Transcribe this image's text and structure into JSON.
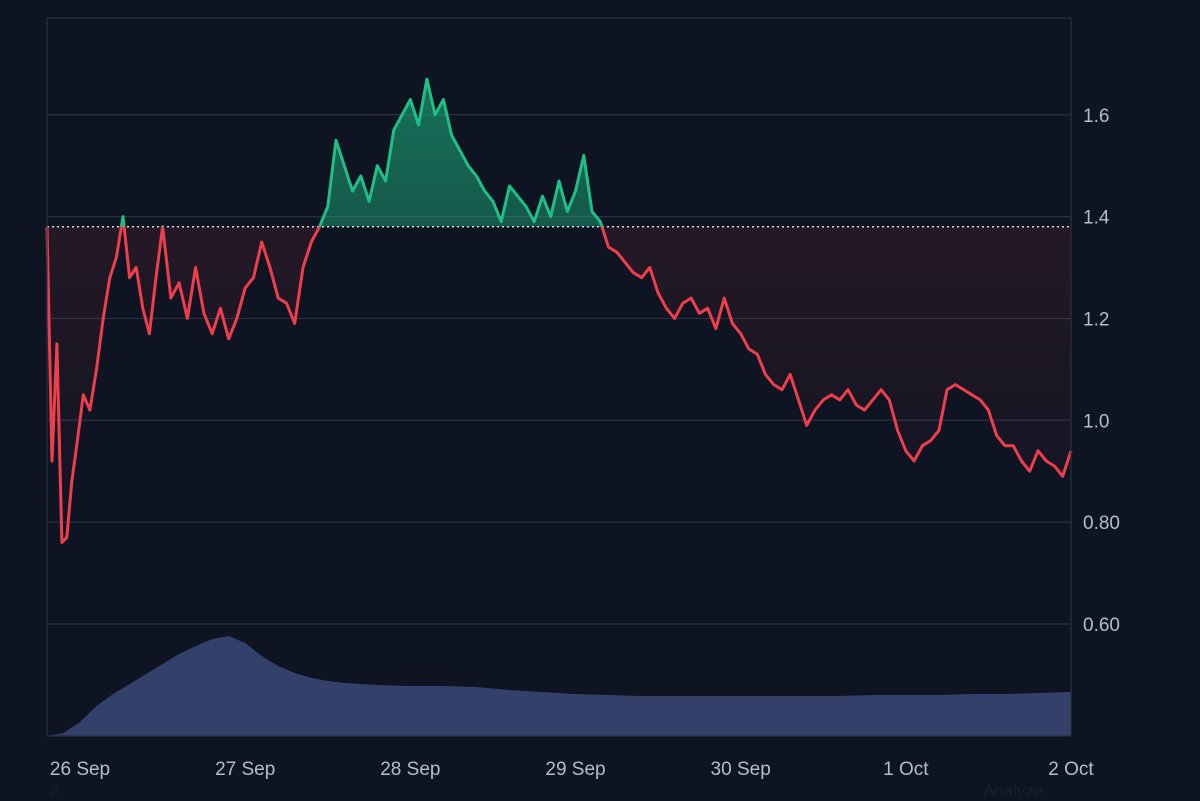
{
  "colors": {
    "background": "#0e1422",
    "grid": "#2a3142",
    "axis_text": "#b6bccb",
    "above_baseline": "#1fbf86",
    "below_baseline": "#ee3e4c",
    "baseline": "#d8dbe2",
    "volume": "#33406a"
  },
  "chart_data": {
    "type": "area",
    "title": "",
    "xlabel": "",
    "ylabel": "",
    "x_tick_labels": [
      "26 Sep",
      "27 Sep",
      "28 Sep",
      "29 Sep",
      "30 Sep",
      "1 Oct",
      "2 Oct"
    ],
    "y_tick_labels": [
      "0.60",
      "0.80",
      "1.0",
      "1.2",
      "1.4",
      "1.6"
    ],
    "y_ticks": [
      0.6,
      0.8,
      1.0,
      1.2,
      1.4,
      1.6
    ],
    "y_axis_side": "right",
    "ylim": [
      0.38,
      1.79
    ],
    "xlim": [
      25.8,
      32.0
    ],
    "x_unit": "day of month (Sep 26 = 26; Oct 1 = 31)",
    "baseline": 1.38,
    "grid": true,
    "series": [
      {
        "values_x": [
          25.8,
          25.83,
          25.86,
          25.89,
          25.92,
          25.95,
          25.98,
          26.02,
          26.06,
          26.1,
          26.14,
          26.18,
          26.22,
          26.26,
          26.3,
          26.34,
          26.38,
          26.42,
          26.46,
          26.5,
          26.55,
          26.6,
          26.65,
          26.7,
          26.75,
          26.8,
          26.85,
          26.9,
          26.95,
          27.0,
          27.05,
          27.1,
          27.15,
          27.2,
          27.25,
          27.3,
          27.35,
          27.4,
          27.45,
          27.5,
          27.55,
          27.6,
          27.65,
          27.7,
          27.75,
          27.8,
          27.85,
          27.9,
          27.95,
          28.0,
          28.05,
          28.1,
          28.15,
          28.2,
          28.25,
          28.3,
          28.35,
          28.4,
          28.45,
          28.5,
          28.55,
          28.6,
          28.65,
          28.7,
          28.75,
          28.8,
          28.85,
          28.9,
          28.95,
          29.0,
          29.05,
          29.1,
          29.15,
          29.2,
          29.25,
          29.3,
          29.35,
          29.4,
          29.45,
          29.5,
          29.55,
          29.6,
          29.65,
          29.7,
          29.75,
          29.8,
          29.85,
          29.9,
          29.95,
          30.0,
          30.05,
          30.1,
          30.15,
          30.2,
          30.25,
          30.3,
          30.35,
          30.4,
          30.45,
          30.5,
          30.55,
          30.6,
          30.65,
          30.7,
          30.75,
          30.8,
          30.85,
          30.9,
          30.95,
          31.0,
          31.05,
          31.1,
          31.15,
          31.2,
          31.25,
          31.3,
          31.35,
          31.4,
          31.45,
          31.5,
          31.55,
          31.6,
          31.65,
          31.7,
          31.75,
          31.8,
          31.85,
          31.9,
          31.95,
          32.0
        ],
        "values_y": [
          1.38,
          0.92,
          1.15,
          0.76,
          0.77,
          0.88,
          0.95,
          1.05,
          1.02,
          1.1,
          1.2,
          1.28,
          1.32,
          1.4,
          1.28,
          1.3,
          1.22,
          1.17,
          1.28,
          1.38,
          1.24,
          1.27,
          1.2,
          1.3,
          1.21,
          1.17,
          1.22,
          1.16,
          1.2,
          1.26,
          1.28,
          1.35,
          1.3,
          1.24,
          1.23,
          1.19,
          1.3,
          1.35,
          1.38,
          1.42,
          1.55,
          1.5,
          1.45,
          1.48,
          1.43,
          1.5,
          1.47,
          1.57,
          1.6,
          1.63,
          1.58,
          1.67,
          1.6,
          1.63,
          1.56,
          1.53,
          1.5,
          1.48,
          1.45,
          1.43,
          1.39,
          1.46,
          1.44,
          1.42,
          1.39,
          1.44,
          1.4,
          1.47,
          1.41,
          1.45,
          1.52,
          1.41,
          1.39,
          1.34,
          1.33,
          1.31,
          1.29,
          1.28,
          1.3,
          1.25,
          1.22,
          1.2,
          1.23,
          1.24,
          1.21,
          1.22,
          1.18,
          1.24,
          1.19,
          1.17,
          1.14,
          1.13,
          1.09,
          1.07,
          1.06,
          1.09,
          1.04,
          0.99,
          1.02,
          1.04,
          1.05,
          1.04,
          1.06,
          1.03,
          1.02,
          1.04,
          1.06,
          1.04,
          0.98,
          0.94,
          0.92,
          0.95,
          0.96,
          0.98,
          1.06,
          1.07,
          1.06,
          1.05,
          1.04,
          1.02,
          0.97,
          0.95,
          0.95,
          0.92,
          0.9,
          0.94,
          0.92,
          0.91,
          0.89,
          0.94
        ]
      }
    ],
    "volume": {
      "values_x": [
        25.8,
        25.9,
        26.0,
        26.1,
        26.2,
        26.3,
        26.4,
        26.5,
        26.6,
        26.7,
        26.8,
        26.9,
        27.0,
        27.1,
        27.2,
        27.3,
        27.4,
        27.5,
        27.6,
        27.8,
        28.0,
        28.2,
        28.4,
        28.6,
        28.8,
        29.0,
        29.2,
        29.4,
        29.6,
        29.8,
        30.0,
        30.2,
        30.4,
        30.6,
        30.8,
        31.0,
        31.2,
        31.4,
        31.6,
        31.8,
        32.0
      ],
      "values_y": [
        0.0,
        0.03,
        0.14,
        0.3,
        0.42,
        0.52,
        0.62,
        0.72,
        0.82,
        0.9,
        0.97,
        1.0,
        0.93,
        0.8,
        0.7,
        0.63,
        0.58,
        0.55,
        0.53,
        0.51,
        0.5,
        0.5,
        0.49,
        0.46,
        0.44,
        0.42,
        0.41,
        0.4,
        0.4,
        0.4,
        0.4,
        0.4,
        0.4,
        0.4,
        0.41,
        0.41,
        0.41,
        0.42,
        0.42,
        0.43,
        0.44
      ]
    }
  },
  "stray_labels": {
    "left": "2",
    "right": "Analyze"
  }
}
